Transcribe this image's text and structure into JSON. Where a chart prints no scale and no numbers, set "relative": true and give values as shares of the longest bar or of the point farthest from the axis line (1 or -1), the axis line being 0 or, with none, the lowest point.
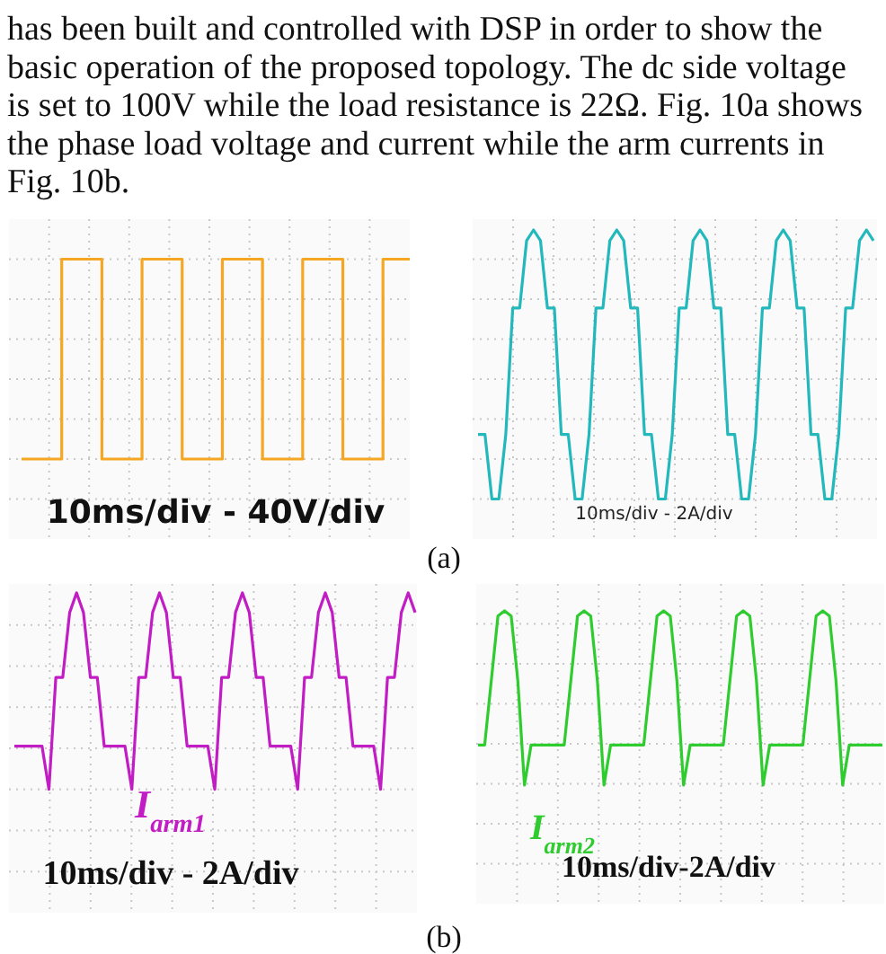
{
  "chart_data": [
    {
      "type": "step",
      "relative": true,
      "grid": true,
      "categories": [
        null,
        null,
        null,
        null,
        null,
        null,
        null,
        null,
        null,
        null,
        null,
        null,
        null,
        null,
        null,
        null,
        null,
        null,
        null,
        null,
        null,
        null,
        null,
        null,
        null,
        null,
        null,
        null,
        null,
        null,
        null,
        null,
        null,
        null,
        null,
        null,
        null,
        null,
        null,
        null,
        null,
        null,
        null,
        null,
        null,
        null,
        null,
        null,
        null,
        null,
        null,
        null,
        null,
        null,
        null,
        null,
        null,
        null,
        null
      ],
      "series": [
        {
          "color": "#f5a623",
          "values": [
            0,
            0,
            0,
            0,
            0,
            0,
            1,
            1,
            1,
            1,
            1,
            1,
            0,
            0,
            0,
            0,
            0,
            0,
            1,
            1,
            1,
            1,
            1,
            1,
            0,
            0,
            0,
            0,
            0,
            0,
            1,
            1,
            1,
            1,
            1,
            1,
            0,
            0,
            0,
            0,
            0,
            0,
            1,
            1,
            1,
            1,
            1,
            1,
            0,
            0,
            0,
            0,
            0,
            0,
            1,
            1,
            1,
            1,
            1
          ]
        }
      ],
      "annotations": [
        "10ms/div - 40V/div",
        "has been built and controlled with DSP in order to show the basic operation of the proposed topology. The dc side voltage is set to 100V while the load resistance is 22Ω. Fig. 10a shows the phase load voltage and current while the arm currents in Fig. 10b."
      ]
    },
    {
      "type": "line",
      "relative": true,
      "grid": true,
      "categories": [
        null,
        null,
        null,
        null,
        null,
        null,
        null,
        null,
        null,
        null,
        null,
        null,
        null,
        null,
        null,
        null,
        null,
        null,
        null,
        null,
        null,
        null,
        null,
        null,
        null,
        null,
        null,
        null,
        null,
        null,
        null,
        null,
        null,
        null,
        null,
        null,
        null,
        null,
        null,
        null,
        null,
        null,
        null,
        null,
        null,
        null,
        null,
        null,
        null,
        null,
        null,
        null,
        null,
        null,
        null,
        null,
        null,
        null
      ],
      "series": [
        {
          "color": "#22b8bc",
          "values": [
            0.24,
            0.24,
            0,
            0,
            0.24,
            0.71,
            0.71,
            0.96,
            1,
            0.96,
            0.71,
            0.71,
            0.24,
            0.24,
            0,
            0,
            0.24,
            0.71,
            0.71,
            0.96,
            1,
            0.96,
            0.71,
            0.71,
            0.24,
            0.24,
            0,
            0,
            0.24,
            0.71,
            0.71,
            0.96,
            1,
            0.96,
            0.71,
            0.71,
            0.24,
            0.24,
            0,
            0,
            0.24,
            0.71,
            0.71,
            0.96,
            1,
            0.96,
            0.71,
            0.71,
            0.24,
            0.24,
            0,
            0,
            0.24,
            0.71,
            0.71,
            0.96,
            1,
            0.96
          ]
        }
      ],
      "annotations": [
        "10ms/div - 2A/div",
        "(a)"
      ]
    },
    {
      "type": "line",
      "relative": true,
      "grid": true,
      "categories": [
        null,
        null,
        null,
        null,
        null,
        null,
        null,
        null,
        null,
        null,
        null,
        null,
        null,
        null,
        null,
        null,
        null,
        null,
        null,
        null,
        null,
        null,
        null,
        null,
        null,
        null,
        null,
        null,
        null,
        null,
        null,
        null,
        null,
        null,
        null,
        null,
        null,
        null,
        null,
        null,
        null,
        null,
        null,
        null,
        null,
        null,
        null,
        null,
        null,
        null,
        null,
        null,
        null,
        null,
        null,
        null,
        null,
        null,
        null
      ],
      "series": [
        {
          "name": "I$_{arm1}$",
          "color": "#c21cc4",
          "values": [
            0.22,
            0.22,
            0.22,
            0.22,
            0.22,
            0,
            0.57,
            0.57,
            0.9,
            1,
            0.9,
            0.57,
            0.57,
            0.22,
            0.22,
            0.22,
            0.22,
            0,
            0.57,
            0.57,
            0.9,
            1,
            0.9,
            0.57,
            0.57,
            0.22,
            0.22,
            0.22,
            0.22,
            0,
            0.57,
            0.57,
            0.9,
            1,
            0.9,
            0.57,
            0.57,
            0.22,
            0.22,
            0.22,
            0.22,
            0,
            0.57,
            0.57,
            0.9,
            1,
            0.9,
            0.57,
            0.57,
            0.22,
            0.22,
            0.22,
            0.22,
            0,
            0.57,
            0.57,
            0.9,
            1,
            0.9
          ]
        }
      ],
      "annotations": [
        "10ms/div - 2A/div"
      ]
    },
    {
      "type": "line",
      "relative": true,
      "grid": true,
      "categories": [
        null,
        null,
        null,
        null,
        null,
        null,
        null,
        null,
        null,
        null,
        null,
        null,
        null,
        null,
        null,
        null,
        null,
        null,
        null,
        null,
        null,
        null,
        null,
        null,
        null,
        null,
        null,
        null,
        null,
        null,
        null,
        null,
        null,
        null,
        null,
        null,
        null,
        null,
        null,
        null,
        null,
        null,
        null,
        null,
        null,
        null,
        null,
        null,
        null,
        null,
        null,
        null,
        null,
        null,
        null,
        null,
        null,
        null,
        null,
        null,
        null,
        null
      ],
      "series": [
        {
          "name": "I$_{arm2}$",
          "color": "#2ecc2e",
          "values": [
            0.23,
            0.23,
            0.6,
            0.97,
            1,
            0.97,
            0.6,
            0,
            0.23,
            0.23,
            0.23,
            0.23,
            0.23,
            0.23,
            0.6,
            0.97,
            1,
            0.97,
            0.6,
            0,
            0.23,
            0.23,
            0.23,
            0.23,
            0.23,
            0.23,
            0.6,
            0.97,
            1,
            0.97,
            0.6,
            0,
            0.23,
            0.23,
            0.23,
            0.23,
            0.23,
            0.23,
            0.6,
            0.97,
            1,
            0.97,
            0.6,
            0,
            0.23,
            0.23,
            0.23,
            0.23,
            0.23,
            0.23,
            0.6,
            0.97,
            1,
            0.97,
            0.6,
            0,
            0.23,
            0.23,
            0.23,
            0.23,
            0.23,
            0.23
          ]
        }
      ],
      "annotations": [
        "10ms/div-2A/div",
        "(b)"
      ]
    }
  ]
}
